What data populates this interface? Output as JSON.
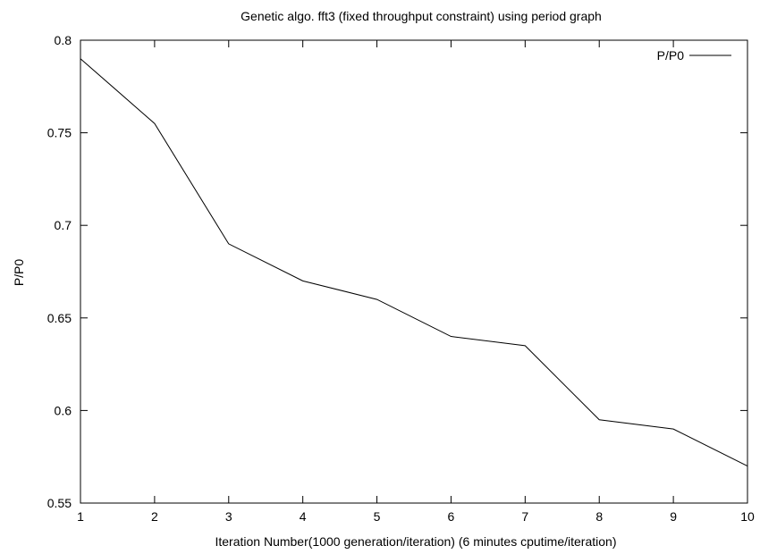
{
  "chart_data": {
    "type": "line",
    "title": "Genetic algo. fft3 (fixed throughput constraint) using period graph",
    "xlabel": "Iteration Number(1000 generation/iteration) (6 minutes cputime/iteration)",
    "ylabel": "P/P0",
    "xlim": [
      1,
      10
    ],
    "ylim": [
      0.55,
      0.8
    ],
    "x_ticks": [
      "1",
      "2",
      "3",
      "4",
      "5",
      "6",
      "7",
      "8",
      "9",
      "10"
    ],
    "y_ticks": [
      "0.55",
      "0.6",
      "0.65",
      "0.7",
      "0.75",
      "0.8"
    ],
    "grid": false,
    "legend_position": "top-right",
    "series": [
      {
        "name": "P/P0",
        "color": "#000000",
        "x": [
          1,
          2,
          3,
          4,
          5,
          6,
          7,
          8,
          9,
          10
        ],
        "y": [
          0.79,
          0.755,
          0.69,
          0.67,
          0.66,
          0.64,
          0.635,
          0.595,
          0.59,
          0.57
        ]
      }
    ]
  }
}
